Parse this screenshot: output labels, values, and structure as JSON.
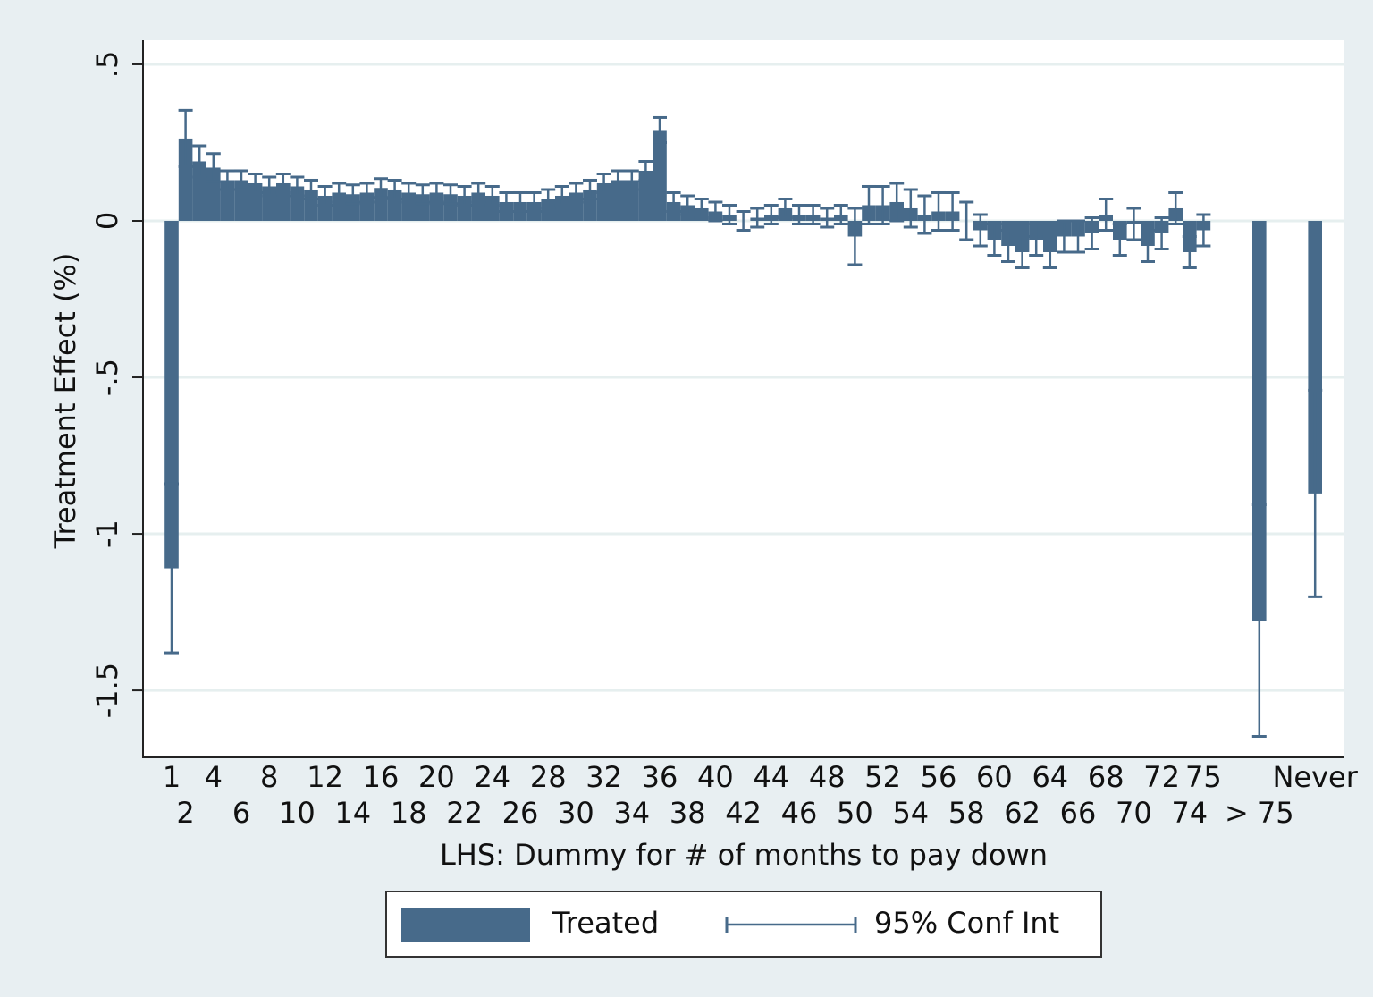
{
  "chart_data": {
    "type": "bar",
    "x_label": "LHS: Dummy for # of months to pay down",
    "y_label": "Treatment Effect (%)",
    "categories": [
      "1",
      "2",
      null,
      "4",
      null,
      "6",
      null,
      "8",
      null,
      "10",
      null,
      "12",
      null,
      "14",
      null,
      "16",
      null,
      "18",
      null,
      "20",
      null,
      "22",
      null,
      "24",
      null,
      "26",
      null,
      "28",
      null,
      "30",
      null,
      "32",
      null,
      "34",
      null,
      "36",
      null,
      "38",
      null,
      "40",
      null,
      "42",
      null,
      "44",
      null,
      "46",
      null,
      "48",
      null,
      "50",
      null,
      "52",
      null,
      "54",
      null,
      "56",
      null,
      "58",
      null,
      "60",
      null,
      "62",
      null,
      "64",
      null,
      "66",
      null,
      "68",
      null,
      "70",
      null,
      "72",
      null,
      "74",
      "75",
      null,
      null,
      null,
      "> 75",
      null,
      null,
      null,
      "Never"
    ],
    "series": [
      {
        "name": "Treated",
        "color": "#476a8a",
        "error_name": "95% Conf Int",
        "values": [
          -1.11,
          0.263,
          0.19,
          0.17,
          0.13,
          0.13,
          0.12,
          0.11,
          0.12,
          0.11,
          0.1,
          0.08,
          0.09,
          0.085,
          0.09,
          0.105,
          0.1,
          0.09,
          0.085,
          0.09,
          0.085,
          0.08,
          0.09,
          0.08,
          0.06,
          0.06,
          0.06,
          0.07,
          0.08,
          0.09,
          0.1,
          0.12,
          0.13,
          0.13,
          0.16,
          0.29,
          0.06,
          0.05,
          0.04,
          0.03,
          0.02,
          0.0,
          0.01,
          0.02,
          0.04,
          0.02,
          0.02,
          0.01,
          0.02,
          -0.05,
          0.05,
          0.05,
          0.06,
          0.04,
          0.02,
          0.03,
          0.03,
          0.0,
          -0.03,
          -0.06,
          -0.08,
          -0.1,
          -0.06,
          -0.1,
          -0.05,
          -0.05,
          -0.04,
          0.02,
          -0.06,
          -0.01,
          -0.08,
          -0.04,
          0.04,
          -0.1,
          -0.03,
          null,
          null,
          null,
          -1.277,
          null,
          null,
          null,
          -0.871
        ],
        "errors": [
          0.27,
          0.09,
          0.05,
          0.045,
          0.03,
          0.03,
          0.03,
          0.03,
          0.03,
          0.03,
          0.03,
          0.03,
          0.03,
          0.03,
          0.03,
          0.03,
          0.03,
          0.03,
          0.03,
          0.03,
          0.03,
          0.03,
          0.03,
          0.03,
          0.03,
          0.03,
          0.03,
          0.03,
          0.03,
          0.03,
          0.03,
          0.03,
          0.03,
          0.03,
          0.03,
          0.04,
          0.03,
          0.03,
          0.03,
          0.03,
          0.03,
          0.03,
          0.03,
          0.03,
          0.03,
          0.03,
          0.03,
          0.03,
          0.03,
          0.09,
          0.06,
          0.06,
          0.06,
          0.06,
          0.06,
          0.06,
          0.06,
          0.06,
          0.05,
          0.05,
          0.05,
          0.05,
          0.05,
          0.05,
          0.05,
          0.05,
          0.05,
          0.05,
          0.05,
          0.05,
          0.05,
          0.05,
          0.05,
          0.05,
          0.05,
          null,
          null,
          null,
          0.37,
          null,
          null,
          null,
          0.33
        ]
      }
    ],
    "ylim": [
      -1.714,
      0.577
    ],
    "yticks": [
      {
        "value": 0.5,
        "label": ".5"
      },
      0,
      {
        "value": -0.5,
        "label": "-.5"
      },
      -1,
      -1.5
    ],
    "grid": true,
    "legend": "bottom"
  }
}
